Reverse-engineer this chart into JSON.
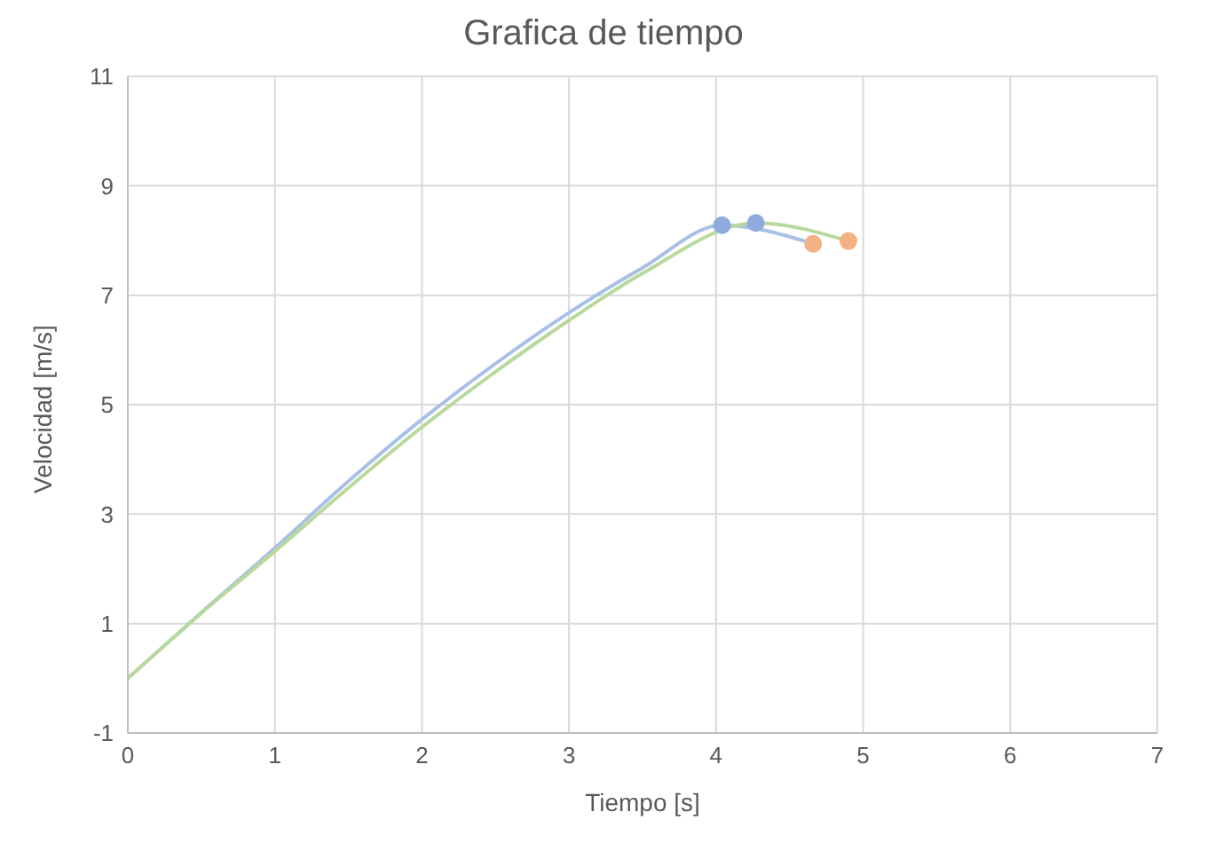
{
  "chart_data": {
    "type": "line",
    "title": "Grafica de tiempo",
    "xlabel": "Tiempo [s]",
    "ylabel": "Velocidad [m/s]",
    "xlim": [
      0,
      7
    ],
    "xticks": [
      0,
      1,
      2,
      3,
      4,
      5,
      6,
      7
    ],
    "ylim": [
      -1,
      11
    ],
    "yticks": [
      -1,
      1,
      3,
      5,
      7,
      9,
      11
    ],
    "grid": true,
    "marker": "none",
    "series": [
      {
        "color": "#a9c0e6",
        "x": [
          0,
          0.5,
          1,
          1.5,
          2,
          2.5,
          3,
          3.5,
          4.04,
          4.66
        ],
        "values": [
          0,
          1.2,
          2.38,
          3.6,
          4.73,
          5.75,
          6.68,
          7.5,
          8.28,
          7.94
        ]
      },
      {
        "color": "#b9d99c",
        "x": [
          0,
          0.5,
          1,
          1.5,
          2,
          2.5,
          3,
          3.5,
          4.27,
          4.9
        ],
        "values": [
          0,
          1.19,
          2.32,
          3.48,
          4.59,
          5.6,
          6.54,
          7.4,
          8.32,
          7.99
        ]
      },
      {
        "type": "scatter",
        "color": "#8faadc",
        "marker": "circle",
        "x": [
          4.04,
          4.27
        ],
        "values": [
          8.28,
          8.32
        ]
      },
      {
        "type": "scatter",
        "color": "#f4b183",
        "marker": "circle",
        "x": [
          4.66,
          4.9
        ],
        "values": [
          7.94,
          7.99
        ]
      }
    ]
  }
}
